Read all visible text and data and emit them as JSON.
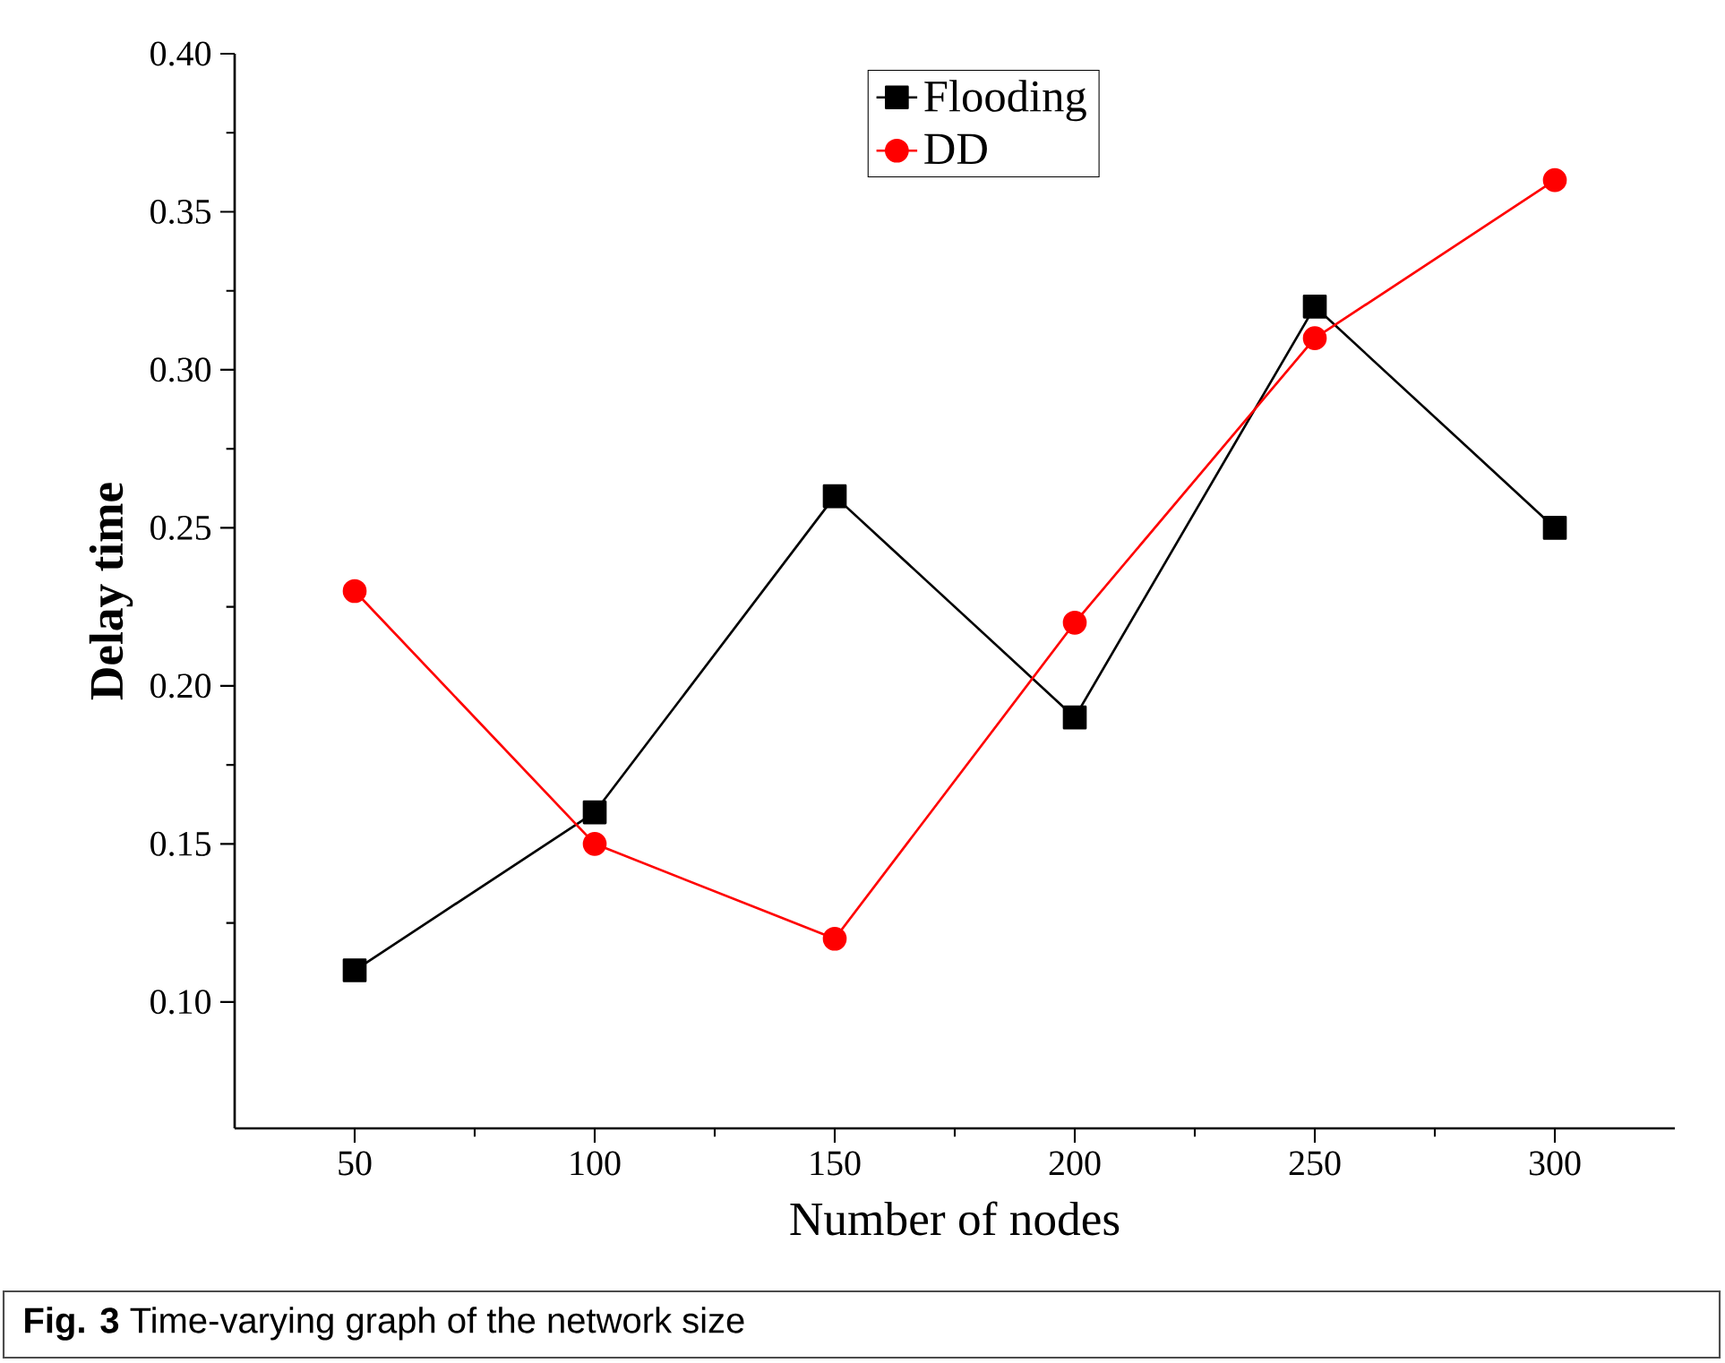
{
  "chart_data": {
    "type": "line",
    "xlabel": "Number of nodes",
    "ylabel": "Delay time",
    "x": [
      50,
      100,
      150,
      200,
      250,
      300
    ],
    "series": [
      {
        "name": "Flooding",
        "color": "#000000",
        "marker": "square",
        "values": [
          0.11,
          0.16,
          0.26,
          0.19,
          0.32,
          0.25
        ]
      },
      {
        "name": "DD",
        "color": "#ff0000",
        "marker": "circle",
        "values": [
          0.23,
          0.15,
          0.12,
          0.22,
          0.31,
          0.36
        ]
      }
    ],
    "xlim": [
      25,
      325
    ],
    "ylim": [
      0.06,
      0.4
    ],
    "xticks": [
      50,
      100,
      150,
      200,
      250,
      300
    ],
    "yticks": [
      {
        "value": 0.1,
        "label": "0.10"
      },
      {
        "value": 0.15,
        "label": "0.15"
      },
      {
        "value": 0.2,
        "label": "0.20"
      },
      {
        "value": 0.25,
        "label": "0.25"
      },
      {
        "value": 0.3,
        "label": "0.30"
      },
      {
        "value": 0.35,
        "label": "0.35"
      },
      {
        "value": 0.4,
        "label": "0.40"
      }
    ],
    "legend": "top",
    "grid": false,
    "line_style": "solid",
    "annotations": [
      "**Fig. 3** Time-varying graph of the network size"
    ]
  }
}
